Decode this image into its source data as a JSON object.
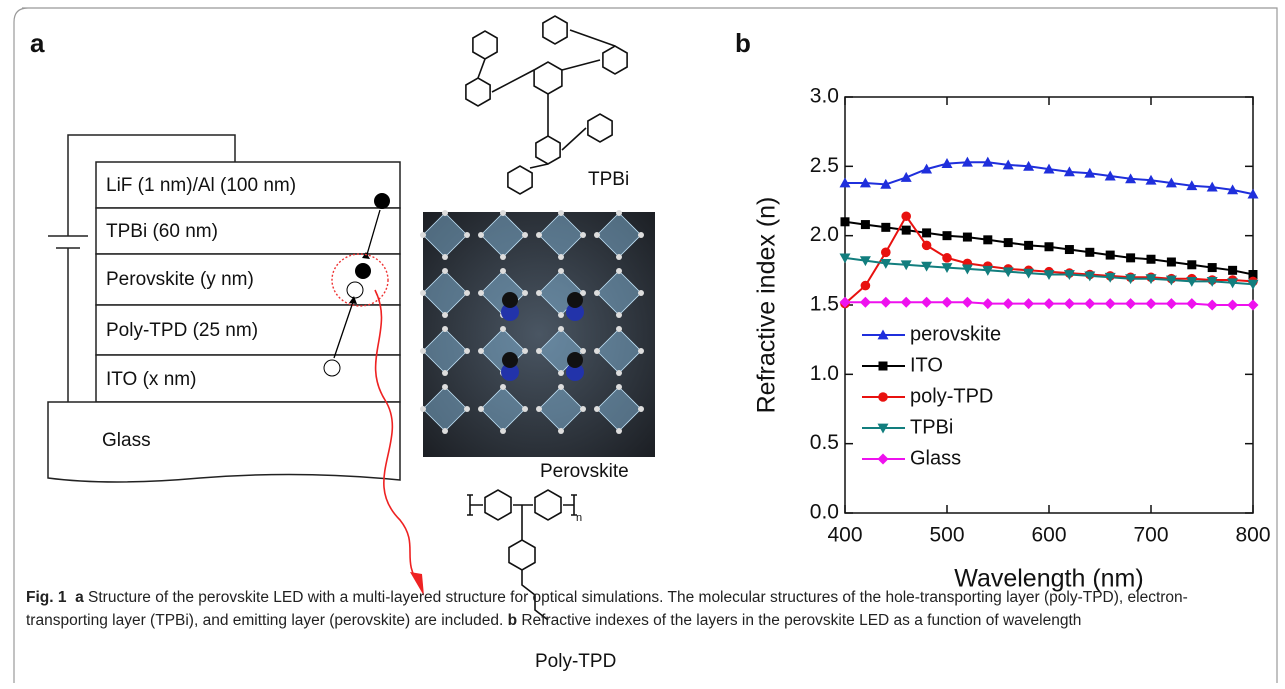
{
  "panel_labels": [
    "a",
    "b"
  ],
  "panel_a": {
    "layers": [
      "LiF (1 nm)/Al (100 nm)",
      "TPBi (60 nm)",
      "Perovskite (y nm)",
      "Poly-TPD (25 nm)",
      "ITO (x nm)",
      "Glass"
    ],
    "molecules": [
      "TPBi",
      "Perovskite",
      "Poly-TPD"
    ],
    "poly_tpd_repeat": "n"
  },
  "chart_data": {
    "type": "line",
    "xlabel": "Wavelength (nm)",
    "ylabel": "Refractive index (n)",
    "x": [
      400,
      420,
      440,
      460,
      480,
      500,
      520,
      540,
      560,
      580,
      600,
      620,
      640,
      660,
      680,
      700,
      720,
      740,
      760,
      780,
      800
    ],
    "series": [
      {
        "name": "perovskite",
        "color": "#1f2fdc",
        "marker": "triangle-up",
        "values": [
          2.38,
          2.38,
          2.37,
          2.42,
          2.48,
          2.52,
          2.53,
          2.53,
          2.51,
          2.5,
          2.48,
          2.46,
          2.45,
          2.43,
          2.41,
          2.4,
          2.38,
          2.36,
          2.35,
          2.33,
          2.3
        ]
      },
      {
        "name": "ITO",
        "color": "#000000",
        "marker": "square",
        "values": [
          2.1,
          2.08,
          2.06,
          2.04,
          2.02,
          2.0,
          1.99,
          1.97,
          1.95,
          1.93,
          1.92,
          1.9,
          1.88,
          1.86,
          1.84,
          1.83,
          1.81,
          1.79,
          1.77,
          1.75,
          1.72
        ]
      },
      {
        "name": "poly-TPD",
        "color": "#e8110f",
        "marker": "circle",
        "values": [
          1.51,
          1.64,
          1.88,
          2.14,
          1.93,
          1.84,
          1.8,
          1.78,
          1.76,
          1.75,
          1.74,
          1.73,
          1.72,
          1.71,
          1.7,
          1.7,
          1.69,
          1.69,
          1.68,
          1.68,
          1.67
        ]
      },
      {
        "name": "TPBi",
        "color": "#127e7e",
        "marker": "triangle-down",
        "values": [
          1.84,
          1.82,
          1.8,
          1.79,
          1.78,
          1.77,
          1.76,
          1.75,
          1.74,
          1.73,
          1.72,
          1.72,
          1.71,
          1.7,
          1.69,
          1.69,
          1.68,
          1.67,
          1.67,
          1.66,
          1.65
        ]
      },
      {
        "name": "Glass",
        "color": "#ee11ee",
        "marker": "diamond",
        "values": [
          1.52,
          1.52,
          1.52,
          1.52,
          1.52,
          1.52,
          1.52,
          1.51,
          1.51,
          1.51,
          1.51,
          1.51,
          1.51,
          1.51,
          1.51,
          1.51,
          1.51,
          1.51,
          1.5,
          1.5,
          1.5
        ]
      }
    ],
    "xlim": [
      400,
      800
    ],
    "xticks": [
      400,
      500,
      600,
      700,
      800
    ],
    "ylim": [
      0,
      3
    ],
    "yticks": [
      {
        "value": 0,
        "label": "0.0"
      },
      0.5,
      {
        "value": 1,
        "label": "1.0"
      },
      1.5,
      {
        "value": 2,
        "label": "2.0"
      },
      2.5,
      {
        "value": 3,
        "label": "3.0"
      }
    ],
    "legend": "lower-left"
  },
  "caption": [
    {
      "text": "Fig. 1",
      "bold": true
    },
    {
      "text": "  a",
      "bold": true
    },
    {
      "text": " Structure of the perovskite LED with a multi-layered structure for optical simulations. The molecular structures of the hole-transporting layer (poly-TPD), electron-transporting layer (TPBi), and emitting layer (perovskite) are included.",
      "bold": false
    },
    {
      "text": " b",
      "bold": true
    },
    {
      "text": " Refractive indexes of the layers in the perovskite LED as a function of wavelength",
      "bold": false
    }
  ]
}
